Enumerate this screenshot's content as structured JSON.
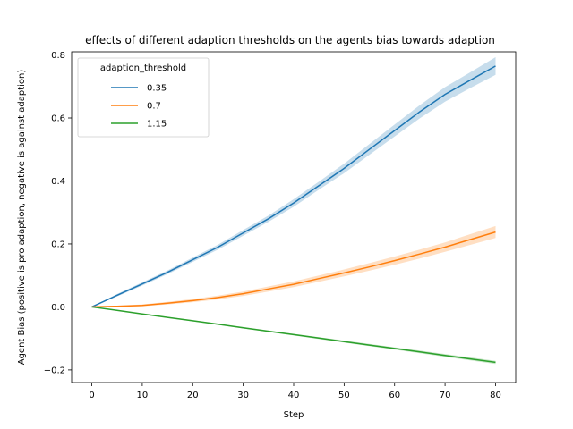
{
  "chart_data": {
    "type": "line",
    "title": "effects of different adaption thresholds on the agents bias towards adaption",
    "xlabel": "Step",
    "ylabel": "Agent Bias (positive is pro adaption, negative is against adaption)",
    "xlim": [
      -4,
      84
    ],
    "ylim": [
      -0.24,
      0.81
    ],
    "xticks": [
      0,
      10,
      20,
      30,
      40,
      50,
      60,
      70,
      80
    ],
    "yticks": [
      -0.2,
      0.0,
      0.2,
      0.4,
      0.6,
      0.8
    ],
    "legend": {
      "title": "adaption_threshold",
      "placement": "top-left"
    },
    "x": [
      0,
      5,
      10,
      15,
      20,
      25,
      30,
      35,
      40,
      45,
      50,
      55,
      60,
      65,
      70,
      75,
      80
    ],
    "series": [
      {
        "name": "0.35",
        "color": "#1f77b4",
        "values": [
          0.0,
          0.037,
          0.073,
          0.11,
          0.15,
          0.19,
          0.235,
          0.28,
          0.33,
          0.385,
          0.44,
          0.5,
          0.56,
          0.62,
          0.675,
          0.72,
          0.765
        ],
        "ci_width": [
          0.0,
          0.004,
          0.005,
          0.006,
          0.007,
          0.008,
          0.009,
          0.01,
          0.012,
          0.013,
          0.015,
          0.017,
          0.019,
          0.021,
          0.023,
          0.025,
          0.028
        ]
      },
      {
        "name": "0.7",
        "color": "#ff7f0e",
        "values": [
          0.0,
          0.002,
          0.005,
          0.012,
          0.02,
          0.03,
          0.042,
          0.057,
          0.072,
          0.09,
          0.108,
          0.127,
          0.147,
          0.168,
          0.19,
          0.214,
          0.238
        ],
        "ci_width": [
          0.0,
          0.002,
          0.003,
          0.004,
          0.005,
          0.006,
          0.007,
          0.008,
          0.009,
          0.01,
          0.011,
          0.012,
          0.013,
          0.014,
          0.015,
          0.017,
          0.019
        ]
      },
      {
        "name": "1.15",
        "color": "#2ca02c",
        "values": [
          0.0,
          -0.011,
          -0.022,
          -0.033,
          -0.044,
          -0.055,
          -0.066,
          -0.077,
          -0.088,
          -0.099,
          -0.11,
          -0.121,
          -0.132,
          -0.143,
          -0.154,
          -0.165,
          -0.176
        ],
        "ci_width": [
          0.0,
          0.0008,
          0.0012,
          0.0015,
          0.0018,
          0.002,
          0.0023,
          0.0025,
          0.0028,
          0.003,
          0.0033,
          0.0036,
          0.0039,
          0.0042,
          0.0045,
          0.0048,
          0.005
        ]
      }
    ],
    "grid": false
  }
}
